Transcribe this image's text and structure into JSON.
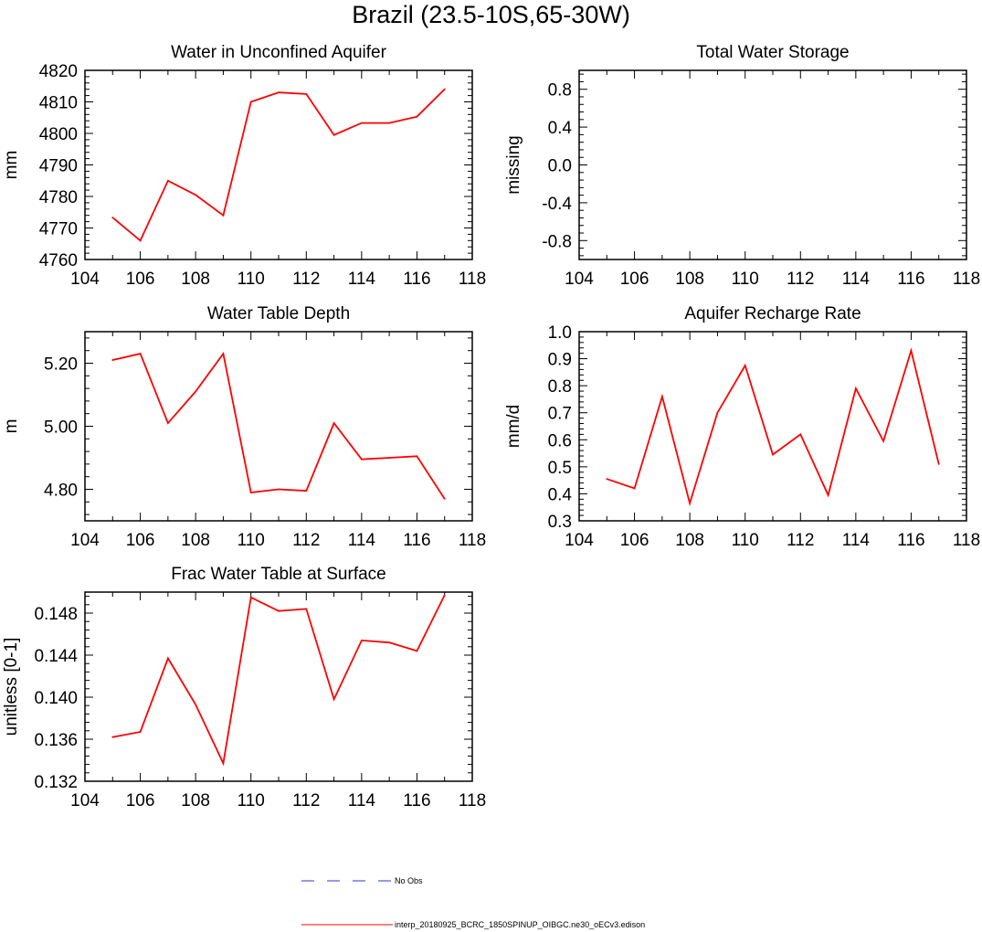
{
  "title": "Brazil (23.5-10S,65-30W)",
  "legend": {
    "items": [
      {
        "label": "No Obs",
        "color": "#3333cc",
        "style": "dashed"
      },
      {
        "label": "interp_20180925_BCRC_1850SPINUP_OIBGC.ne30_oECv3.edison",
        "color": "#ff0000",
        "style": "solid"
      }
    ]
  },
  "chart_data": [
    {
      "type": "line",
      "title": "Water in Unconfined Aquifer",
      "xlabel": "",
      "ylabel": "mm",
      "xlim": [
        104,
        118
      ],
      "ylim": [
        4760,
        4820
      ],
      "xticks": [
        104,
        106,
        108,
        110,
        112,
        114,
        116,
        118
      ],
      "yticks": [
        4760,
        4770,
        4780,
        4790,
        4800,
        4810,
        4820
      ],
      "ytick_labels": [
        "4760",
        "4770",
        "4780",
        "4790",
        "4800",
        "4810",
        "4820"
      ],
      "series": [
        {
          "name": "interp_20180925_BCRC_1850SPINUP_OIBGC.ne30_oECv3.edison",
          "color": "#ff0000",
          "x": [
            105,
            106,
            107,
            108,
            109,
            110,
            111,
            112,
            113,
            114,
            115,
            116,
            117
          ],
          "values": [
            4773.3,
            4766.0,
            4785.0,
            4780.5,
            4774.0,
            4810.0,
            4813.0,
            4812.5,
            4799.5,
            4803.3,
            4803.3,
            4805.3,
            4814.0
          ]
        }
      ]
    },
    {
      "type": "line",
      "title": "Total Water Storage",
      "xlabel": "",
      "ylabel": "missing",
      "xlim": [
        104,
        118
      ],
      "ylim": [
        -1.0,
        1.0
      ],
      "xticks": [
        104,
        106,
        108,
        110,
        112,
        114,
        116,
        118
      ],
      "yticks": [
        -0.8,
        -0.4,
        0.0,
        0.4,
        0.8
      ],
      "ytick_labels": [
        "-0.8",
        "-0.4",
        "0.0",
        "0.4",
        "0.8"
      ],
      "series": []
    },
    {
      "type": "line",
      "title": "Water Table Depth",
      "xlabel": "",
      "ylabel": "m",
      "xlim": [
        104,
        118
      ],
      "ylim": [
        4.7,
        5.3
      ],
      "xticks": [
        104,
        106,
        108,
        110,
        112,
        114,
        116,
        118
      ],
      "yticks": [
        4.8,
        5.0,
        5.2
      ],
      "ytick_labels": [
        "4.80",
        "5.00",
        "5.20"
      ],
      "series": [
        {
          "name": "interp_20180925_BCRC_1850SPINUP_OIBGC.ne30_oECv3.edison",
          "color": "#ff0000",
          "x": [
            105,
            106,
            107,
            108,
            109,
            110,
            111,
            112,
            113,
            114,
            115,
            116,
            117
          ],
          "values": [
            5.21,
            5.23,
            5.01,
            5.11,
            5.23,
            4.79,
            4.8,
            4.795,
            5.01,
            4.895,
            4.9,
            4.905,
            4.77
          ]
        }
      ]
    },
    {
      "type": "line",
      "title": "Aquifer Recharge Rate",
      "xlabel": "",
      "ylabel": "mm/d",
      "xlim": [
        104,
        118
      ],
      "ylim": [
        0.3,
        1.0
      ],
      "xticks": [
        104,
        106,
        108,
        110,
        112,
        114,
        116,
        118
      ],
      "yticks": [
        0.3,
        0.4,
        0.5,
        0.6,
        0.7,
        0.8,
        0.9,
        1.0
      ],
      "ytick_labels": [
        "0.3",
        "0.4",
        "0.5",
        "0.6",
        "0.7",
        "0.8",
        "0.9",
        "1.0"
      ],
      "series": [
        {
          "name": "interp_20180925_BCRC_1850SPINUP_OIBGC.ne30_oECv3.edison",
          "color": "#ff0000",
          "x": [
            105,
            106,
            107,
            108,
            109,
            110,
            111,
            112,
            113,
            114,
            115,
            116,
            117
          ],
          "values": [
            0.455,
            0.42,
            0.76,
            0.365,
            0.7,
            0.875,
            0.545,
            0.62,
            0.395,
            0.79,
            0.595,
            0.93,
            0.51
          ]
        }
      ]
    },
    {
      "type": "line",
      "title": "Frac Water Table at Surface",
      "xlabel": "",
      "ylabel": "unitless [0-1]",
      "xlim": [
        104,
        118
      ],
      "ylim": [
        0.132,
        0.15
      ],
      "xticks": [
        104,
        106,
        108,
        110,
        112,
        114,
        116,
        118
      ],
      "yticks": [
        0.132,
        0.136,
        0.14,
        0.144,
        0.148
      ],
      "ytick_labels": [
        "0.132",
        "0.136",
        "0.140",
        "0.144",
        "0.148"
      ],
      "series": [
        {
          "name": "interp_20180925_BCRC_1850SPINUP_OIBGC.ne30_oECv3.edison",
          "color": "#ff0000",
          "x": [
            105,
            106,
            107,
            108,
            109,
            110,
            111,
            112,
            113,
            114,
            115,
            116,
            117
          ],
          "values": [
            0.1362,
            0.1367,
            0.1437,
            0.1393,
            0.1337,
            0.1495,
            0.1482,
            0.1484,
            0.1398,
            0.1454,
            0.1452,
            0.1444,
            0.1497
          ]
        }
      ]
    }
  ]
}
